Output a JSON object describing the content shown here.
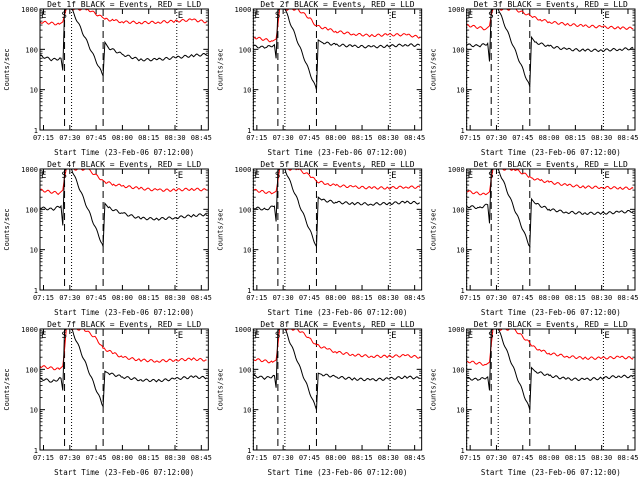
{
  "chart_data": [
    {
      "type": "line",
      "title": "Det 1f BLACK = Events, RED = LLD",
      "xlabel": "Start Time (23-Feb-06 07:12:00)",
      "ylabel": "Counts/sec",
      "yscale": "log",
      "ylim": [
        1,
        1000
      ],
      "x_ticks": [
        "07:15",
        "07:30",
        "07:45",
        "08:00",
        "08:15",
        "08:30",
        "08:45"
      ],
      "y_ticks": [
        "1",
        "10",
        "100",
        "1000"
      ],
      "markers": {
        "E1": "07:13",
        "S": "07:27",
        "E2": "08:31"
      },
      "dotted_lines": [
        "07:13",
        "07:31",
        "08:31"
      ],
      "dashed_lines": [
        "07:27",
        "07:49"
      ],
      "series": [
        {
          "color": "#ff0000",
          "x": [
            "07:13",
            "07:24",
            "07:26",
            "07:27",
            "07:28",
            "07:31",
            "07:40",
            "07:49",
            "07:50",
            "07:55",
            "08:00",
            "08:10",
            "08:20",
            "08:30",
            "08:40",
            "08:48"
          ],
          "values": [
            480,
            420,
            480,
            700,
            1000,
            1000,
            1000,
            600,
            560,
            520,
            480,
            460,
            470,
            500,
            540,
            480
          ]
        },
        {
          "color": "#000000",
          "x": [
            "07:13",
            "07:20",
            "07:25",
            "07:26",
            "07:27",
            "07:28",
            "07:31",
            "07:49",
            "07:50",
            "07:52",
            "08:00",
            "08:10",
            "08:20",
            "08:30",
            "08:40",
            "08:48"
          ],
          "values": [
            70,
            55,
            60,
            30,
            900,
            1000,
            1000,
            22,
            150,
            110,
            75,
            55,
            56,
            62,
            70,
            75
          ]
        }
      ]
    },
    {
      "type": "line",
      "title": "Det 2f BLACK = Events, RED = LLD",
      "xlabel": "Start Time (23-Feb-06 07:12:00)",
      "ylabel": "Counts/sec",
      "yscale": "log",
      "ylim": [
        1,
        1000
      ],
      "x_ticks": [
        "07:15",
        "07:30",
        "07:45",
        "08:00",
        "08:15",
        "08:30",
        "08:45"
      ],
      "y_ticks": [
        "1",
        "10",
        "100",
        "1000"
      ],
      "markers": {
        "E1": "07:13",
        "S": "07:27",
        "E2": "08:31"
      },
      "dotted_lines": [
        "07:13",
        "07:31",
        "08:31"
      ],
      "dashed_lines": [
        "07:27",
        "07:49"
      ],
      "series": [
        {
          "color": "#ff0000",
          "x": [
            "07:13",
            "07:24",
            "07:26",
            "07:27",
            "07:28",
            "07:31",
            "07:38",
            "07:45",
            "07:49",
            "07:55",
            "08:00",
            "08:10",
            "08:20",
            "08:30",
            "08:40",
            "08:48"
          ],
          "values": [
            200,
            160,
            180,
            400,
            1000,
            1000,
            1000,
            600,
            380,
            320,
            280,
            240,
            220,
            230,
            230,
            200
          ]
        },
        {
          "color": "#000000",
          "x": [
            "07:13",
            "07:20",
            "07:25",
            "07:26",
            "07:27",
            "07:28",
            "07:31",
            "07:49",
            "07:50",
            "07:52",
            "08:00",
            "08:10",
            "08:20",
            "08:30",
            "08:40",
            "08:48"
          ],
          "values": [
            120,
            110,
            130,
            60,
            900,
            1000,
            1000,
            10,
            170,
            150,
            130,
            120,
            115,
            120,
            130,
            125
          ]
        }
      ]
    },
    {
      "type": "line",
      "title": "Det 3f BLACK = Events, RED = LLD",
      "xlabel": "Start Time (23-Feb-06 07:12:00)",
      "ylabel": "Counts/sec",
      "yscale": "log",
      "ylim": [
        1,
        1000
      ],
      "x_ticks": [
        "07:15",
        "07:30",
        "07:45",
        "08:00",
        "08:15",
        "08:30",
        "08:45"
      ],
      "y_ticks": [
        "1",
        "10",
        "100",
        "1000"
      ],
      "markers": {
        "E1": "07:13",
        "S": "07:27",
        "E2": "08:31"
      },
      "dotted_lines": [
        "07:13",
        "07:31",
        "08:31"
      ],
      "dashed_lines": [
        "07:27",
        "07:49"
      ],
      "series": [
        {
          "color": "#ff0000",
          "x": [
            "07:13",
            "07:24",
            "07:26",
            "07:27",
            "07:28",
            "07:31",
            "07:40",
            "07:49",
            "07:50",
            "07:55",
            "08:00",
            "08:10",
            "08:20",
            "08:30",
            "08:40",
            "08:48"
          ],
          "values": [
            400,
            320,
            380,
            700,
            1000,
            1000,
            1000,
            700,
            650,
            550,
            480,
            420,
            380,
            360,
            340,
            330
          ]
        },
        {
          "color": "#000000",
          "x": [
            "07:13",
            "07:20",
            "07:25",
            "07:26",
            "07:27",
            "07:28",
            "07:31",
            "07:49",
            "07:50",
            "07:52",
            "08:00",
            "08:10",
            "08:20",
            "08:30",
            "08:40",
            "08:48"
          ],
          "values": [
            130,
            120,
            140,
            50,
            900,
            1000,
            1000,
            12,
            200,
            150,
            120,
            100,
            95,
            95,
            100,
            105
          ]
        }
      ]
    },
    {
      "type": "line",
      "title": "Det 4f BLACK = Events, RED = LLD",
      "xlabel": "Start Time (23-Feb-06 07:12:00)",
      "ylabel": "Counts/sec",
      "yscale": "log",
      "ylim": [
        1,
        1000
      ],
      "x_ticks": [
        "07:15",
        "07:30",
        "07:45",
        "08:00",
        "08:15",
        "08:30",
        "08:45"
      ],
      "y_ticks": [
        "1",
        "10",
        "100",
        "1000"
      ],
      "markers": {
        "E1": "07:13",
        "S": "07:27",
        "E2": "08:31"
      },
      "dotted_lines": [
        "07:13",
        "07:31",
        "08:31"
      ],
      "dashed_lines": [
        "07:27",
        "07:49"
      ],
      "series": [
        {
          "color": "#ff0000",
          "x": [
            "07:13",
            "07:24",
            "07:26",
            "07:27",
            "07:28",
            "07:31",
            "07:40",
            "07:49",
            "07:50",
            "07:55",
            "08:00",
            "08:10",
            "08:20",
            "08:30",
            "08:40",
            "08:48"
          ],
          "values": [
            300,
            250,
            300,
            600,
            1000,
            1000,
            1000,
            520,
            480,
            420,
            380,
            330,
            300,
            300,
            320,
            300
          ]
        },
        {
          "color": "#000000",
          "x": [
            "07:13",
            "07:20",
            "07:25",
            "07:26",
            "07:27",
            "07:28",
            "07:31",
            "07:49",
            "07:50",
            "07:52",
            "08:00",
            "08:10",
            "08:20",
            "08:30",
            "08:40",
            "08:48"
          ],
          "values": [
            110,
            100,
            120,
            40,
            900,
            1000,
            1000,
            12,
            140,
            110,
            80,
            60,
            58,
            62,
            70,
            75
          ]
        }
      ]
    },
    {
      "type": "line",
      "title": "Det 5f BLACK = Events, RED = LLD",
      "xlabel": "Start Time (23-Feb-06 07:12:00)",
      "ylabel": "Counts/sec",
      "yscale": "log",
      "ylim": [
        1,
        1000
      ],
      "x_ticks": [
        "07:15",
        "07:30",
        "07:45",
        "08:00",
        "08:15",
        "08:30",
        "08:45"
      ],
      "y_ticks": [
        "1",
        "10",
        "100",
        "1000"
      ],
      "markers": {
        "E1": "07:13",
        "S": "07:27",
        "E2": "08:31"
      },
      "dotted_lines": [
        "07:13",
        "07:31",
        "08:31"
      ],
      "dashed_lines": [
        "07:27",
        "07:49"
      ],
      "series": [
        {
          "color": "#ff0000",
          "x": [
            "07:13",
            "07:24",
            "07:26",
            "07:27",
            "07:28",
            "07:31",
            "07:38",
            "07:45",
            "07:49",
            "07:55",
            "08:00",
            "08:10",
            "08:20",
            "08:30",
            "08:40",
            "08:48"
          ],
          "values": [
            300,
            250,
            280,
            500,
            1000,
            1000,
            1000,
            700,
            500,
            430,
            390,
            360,
            340,
            340,
            360,
            350
          ]
        },
        {
          "color": "#000000",
          "x": [
            "07:13",
            "07:20",
            "07:25",
            "07:26",
            "07:27",
            "07:28",
            "07:31",
            "07:49",
            "07:50",
            "07:52",
            "08:00",
            "08:10",
            "08:20",
            "08:30",
            "08:40",
            "08:48"
          ],
          "values": [
            110,
            100,
            120,
            50,
            900,
            1000,
            1000,
            12,
            200,
            170,
            150,
            140,
            135,
            140,
            150,
            145
          ]
        }
      ]
    },
    {
      "type": "line",
      "title": "Det 6f BLACK = Events, RED = LLD",
      "xlabel": "Start Time (23-Feb-06 07:12:00)",
      "ylabel": "Counts/sec",
      "yscale": "log",
      "ylim": [
        1,
        1000
      ],
      "x_ticks": [
        "07:15",
        "07:30",
        "07:45",
        "08:00",
        "08:15",
        "08:30",
        "08:45"
      ],
      "y_ticks": [
        "1",
        "10",
        "100",
        "1000"
      ],
      "markers": {
        "E1": "07:13",
        "S": "07:27",
        "E2": "08:31"
      },
      "dotted_lines": [
        "07:13",
        "07:31",
        "08:31"
      ],
      "dashed_lines": [
        "07:27",
        "07:49"
      ],
      "series": [
        {
          "color": "#ff0000",
          "x": [
            "07:13",
            "07:24",
            "07:26",
            "07:27",
            "07:28",
            "07:31",
            "07:40",
            "07:49",
            "07:50",
            "07:55",
            "08:00",
            "08:10",
            "08:20",
            "08:30",
            "08:40",
            "08:48"
          ],
          "values": [
            280,
            230,
            270,
            550,
            1000,
            1000,
            1000,
            650,
            600,
            520,
            470,
            400,
            360,
            350,
            340,
            330
          ]
        },
        {
          "color": "#000000",
          "x": [
            "07:13",
            "07:20",
            "07:25",
            "07:26",
            "07:27",
            "07:28",
            "07:31",
            "07:49",
            "07:50",
            "07:52",
            "08:00",
            "08:10",
            "08:20",
            "08:30",
            "08:40",
            "08:48"
          ],
          "values": [
            120,
            110,
            130,
            45,
            900,
            1000,
            1000,
            12,
            180,
            140,
            100,
            85,
            80,
            80,
            85,
            90
          ]
        }
      ]
    },
    {
      "type": "line",
      "title": "Det 7f BLACK = Events, RED = LLD",
      "xlabel": "Start Time (23-Feb-06 07:12:00)",
      "ylabel": "Counts/sec",
      "yscale": "log",
      "ylim": [
        1,
        1000
      ],
      "x_ticks": [
        "07:15",
        "07:30",
        "07:45",
        "08:00",
        "08:15",
        "08:30",
        "08:45"
      ],
      "y_ticks": [
        "1",
        "10",
        "100",
        "1000"
      ],
      "markers": {
        "E1": "07:13",
        "S": "07:27",
        "E2": "08:31"
      },
      "dotted_lines": [
        "07:13",
        "07:31",
        "08:31"
      ],
      "dashed_lines": [
        "07:27",
        "07:49"
      ],
      "series": [
        {
          "color": "#ff0000",
          "x": [
            "07:13",
            "07:24",
            "07:26",
            "07:27",
            "07:28",
            "07:31",
            "07:38",
            "07:45",
            "07:49",
            "07:55",
            "08:00",
            "08:10",
            "08:20",
            "08:30",
            "08:40",
            "08:48"
          ],
          "values": [
            120,
            100,
            120,
            300,
            1000,
            1000,
            1000,
            600,
            330,
            250,
            200,
            170,
            160,
            170,
            180,
            170
          ]
        },
        {
          "color": "#000000",
          "x": [
            "07:13",
            "07:20",
            "07:25",
            "07:26",
            "07:27",
            "07:28",
            "07:31",
            "07:49",
            "07:50",
            "07:52",
            "08:00",
            "08:10",
            "08:20",
            "08:30",
            "08:40",
            "08:48"
          ],
          "values": [
            60,
            50,
            60,
            30,
            900,
            1000,
            1000,
            12,
            90,
            80,
            65,
            55,
            52,
            58,
            65,
            62
          ]
        }
      ]
    },
    {
      "type": "line",
      "title": "Det 8f BLACK = Events, RED = LLD",
      "xlabel": "Start Time (23-Feb-06 07:12:00)",
      "ylabel": "Counts/sec",
      "yscale": "log",
      "ylim": [
        1,
        1000
      ],
      "x_ticks": [
        "07:15",
        "07:30",
        "07:45",
        "08:00",
        "08:15",
        "08:30",
        "08:45"
      ],
      "y_ticks": [
        "1",
        "10",
        "100",
        "1000"
      ],
      "markers": {
        "E1": "07:13",
        "S": "07:27",
        "E2": "08:31"
      },
      "dotted_lines": [
        "07:13",
        "07:31",
        "08:31"
      ],
      "dashed_lines": [
        "07:27",
        "07:49"
      ],
      "series": [
        {
          "color": "#ff0000",
          "x": [
            "07:13",
            "07:24",
            "07:26",
            "07:27",
            "07:28",
            "07:31",
            "07:38",
            "07:45",
            "07:49",
            "07:55",
            "08:00",
            "08:10",
            "08:20",
            "08:30",
            "08:40",
            "08:48"
          ],
          "values": [
            180,
            150,
            170,
            400,
            1000,
            1000,
            1000,
            600,
            400,
            320,
            270,
            230,
            210,
            210,
            220,
            200
          ]
        },
        {
          "color": "#000000",
          "x": [
            "07:13",
            "07:20",
            "07:25",
            "07:26",
            "07:27",
            "07:28",
            "07:31",
            "07:49",
            "07:50",
            "07:52",
            "08:00",
            "08:10",
            "08:20",
            "08:30",
            "08:40",
            "08:48"
          ],
          "values": [
            70,
            60,
            70,
            35,
            900,
            1000,
            1000,
            10,
            80,
            75,
            65,
            58,
            55,
            58,
            65,
            60
          ]
        }
      ]
    },
    {
      "type": "line",
      "title": "Det 9f BLACK = Events, RED = LLD",
      "xlabel": "Start Time (23-Feb-06 07:12:00)",
      "ylabel": "Counts/sec",
      "yscale": "log",
      "ylim": [
        1,
        1000
      ],
      "x_ticks": [
        "07:15",
        "07:30",
        "07:45",
        "08:00",
        "08:15",
        "08:30",
        "08:45"
      ],
      "y_ticks": [
        "1",
        "10",
        "100",
        "1000"
      ],
      "markers": {
        "E1": "07:13",
        "S": "07:27",
        "E2": "08:31"
      },
      "dotted_lines": [
        "07:13",
        "07:31",
        "08:31"
      ],
      "dashed_lines": [
        "07:27",
        "07:49"
      ],
      "series": [
        {
          "color": "#ff0000",
          "x": [
            "07:13",
            "07:24",
            "07:26",
            "07:27",
            "07:28",
            "07:31",
            "07:40",
            "07:49",
            "07:50",
            "07:55",
            "08:00",
            "08:10",
            "08:20",
            "08:30",
            "08:40",
            "08:48"
          ],
          "values": [
            160,
            130,
            150,
            400,
            1000,
            1000,
            1000,
            450,
            380,
            300,
            250,
            210,
            190,
            190,
            200,
            190
          ]
        },
        {
          "color": "#000000",
          "x": [
            "07:13",
            "07:20",
            "07:25",
            "07:26",
            "07:27",
            "07:28",
            "07:31",
            "07:49",
            "07:50",
            "07:52",
            "08:00",
            "08:10",
            "08:20",
            "08:30",
            "08:40",
            "08:48"
          ],
          "values": [
            60,
            55,
            65,
            30,
            900,
            1000,
            1000,
            10,
            110,
            90,
            70,
            58,
            56,
            60,
            68,
            65
          ]
        }
      ]
    }
  ]
}
